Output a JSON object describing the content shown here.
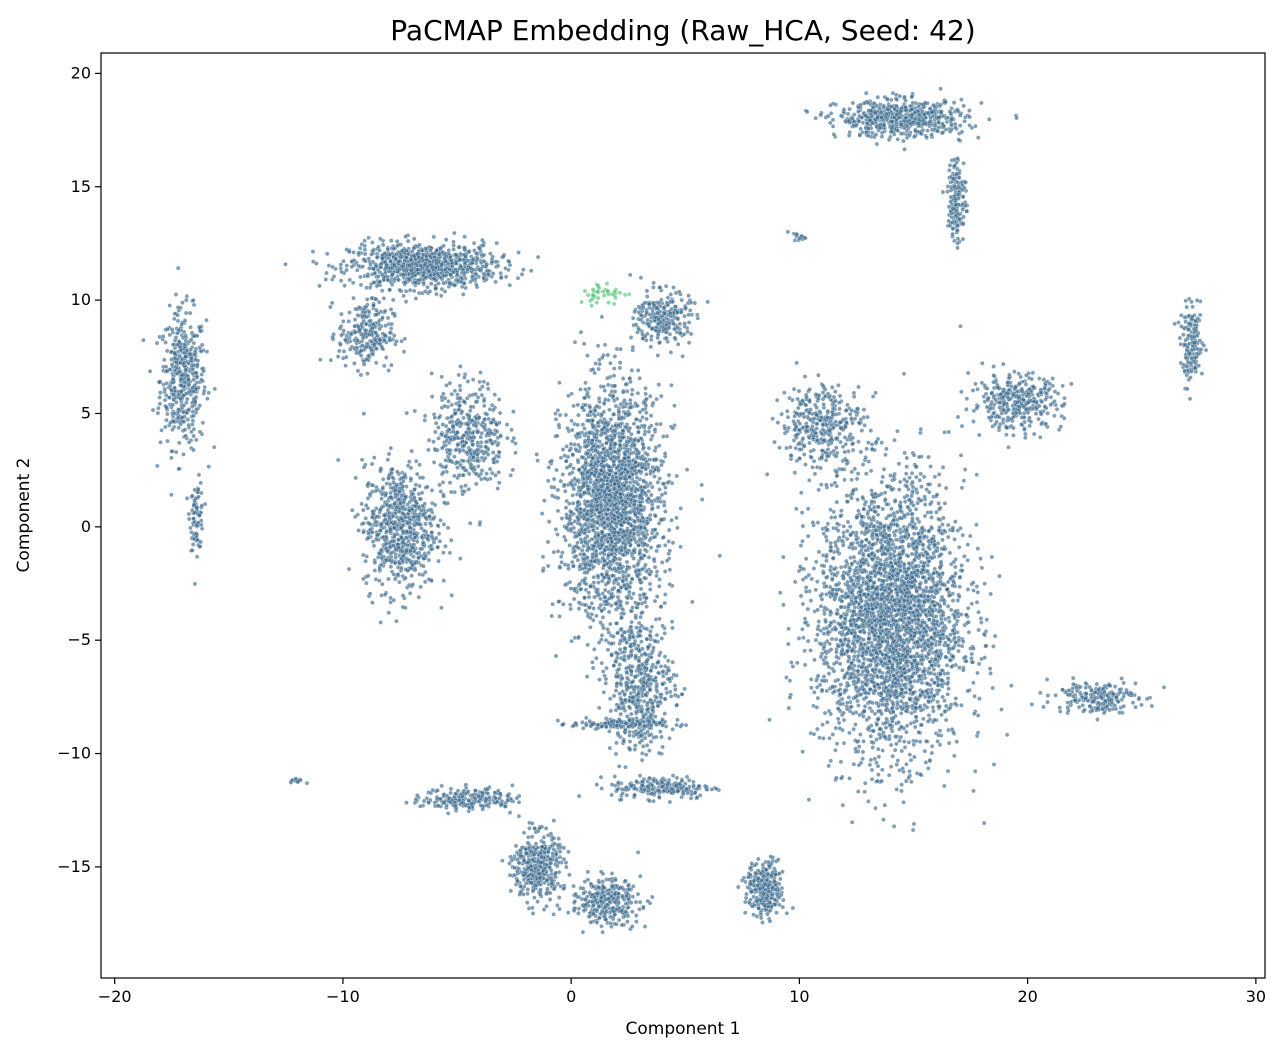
{
  "chart_data": {
    "type": "scatter",
    "title": "PaCMAP Embedding (Raw_HCA, Seed: 42)",
    "xlabel": "Component 1",
    "ylabel": "Component 2",
    "xlim": [
      -20.6,
      30.4
    ],
    "ylim": [
      -19.9,
      20.9
    ],
    "xticks": [
      -20,
      -10,
      0,
      10,
      20,
      30
    ],
    "yticks": [
      -15,
      -10,
      -5,
      0,
      5,
      10,
      15,
      20
    ],
    "xtick_labels": [
      "−20",
      "−10",
      "0",
      "10",
      "20",
      "30"
    ],
    "ytick_labels": [
      "−15",
      "−10",
      "−5",
      "0",
      "5",
      "10",
      "15",
      "20"
    ],
    "grid": false,
    "legend": "none",
    "colors": {
      "main_points": "#3b6a8e",
      "highlight_points": "#4ec477",
      "point_edge": "#ffffff"
    },
    "series": [
      {
        "color": "#3b6a8e",
        "clusters": [
          {
            "center": [
              -17.0,
              6.5
            ],
            "spread": [
              1.0,
              3.0
            ],
            "n": 450
          },
          {
            "center": [
              -16.4,
              0.5
            ],
            "spread": [
              0.3,
              1.5
            ],
            "n": 80
          },
          {
            "center": [
              -6.5,
              11.5
            ],
            "spread": [
              3.2,
              1.0
            ],
            "n": 900
          },
          {
            "center": [
              -9.0,
              8.5
            ],
            "spread": [
              1.2,
              1.5
            ],
            "n": 250
          },
          {
            "center": [
              -7.5,
              0.0
            ],
            "spread": [
              1.6,
              2.8
            ],
            "n": 700
          },
          {
            "center": [
              -4.5,
              4.0
            ],
            "spread": [
              1.6,
              2.5
            ],
            "n": 400
          },
          {
            "center": [
              1.8,
              1.0
            ],
            "spread": [
              2.2,
              5.0
            ],
            "n": 2200
          },
          {
            "center": [
              3.0,
              -7.0
            ],
            "spread": [
              1.5,
              3.0
            ],
            "n": 500
          },
          {
            "center": [
              4.0,
              9.2
            ],
            "spread": [
              1.2,
              1.2
            ],
            "n": 250
          },
          {
            "center": [
              14.0,
              -4.0
            ],
            "spread": [
              3.2,
              6.0
            ],
            "n": 3200
          },
          {
            "center": [
              11.0,
              4.5
            ],
            "spread": [
              1.8,
              1.8
            ],
            "n": 350
          },
          {
            "center": [
              19.5,
              5.5
            ],
            "spread": [
              2.0,
              1.2
            ],
            "n": 350
          },
          {
            "center": [
              14.5,
              18.0
            ],
            "spread": [
              2.8,
              0.8
            ],
            "n": 600
          },
          {
            "center": [
              16.9,
              14.5
            ],
            "spread": [
              0.4,
              2.0
            ],
            "n": 150
          },
          {
            "center": [
              27.2,
              8.0
            ],
            "spread": [
              0.5,
              1.6
            ],
            "n": 150
          },
          {
            "center": [
              23.0,
              -7.5
            ],
            "spread": [
              1.8,
              0.7
            ],
            "n": 200
          },
          {
            "center": [
              -1.5,
              -15.0
            ],
            "spread": [
              1.0,
              1.5
            ],
            "n": 400
          },
          {
            "center": [
              1.5,
              -16.5
            ],
            "spread": [
              1.5,
              1.0
            ],
            "n": 300
          },
          {
            "center": [
              -4.5,
              -12.0
            ],
            "spread": [
              2.0,
              0.5
            ],
            "n": 200
          },
          {
            "center": [
              8.5,
              -16.0
            ],
            "spread": [
              0.8,
              1.2
            ],
            "n": 300
          },
          {
            "center": [
              2.0,
              -8.7
            ],
            "spread": [
              2.0,
              0.2
            ],
            "n": 120
          },
          {
            "center": [
              4.0,
              -11.5
            ],
            "spread": [
              2.2,
              0.5
            ],
            "n": 200
          },
          {
            "center": [
              -12.0,
              -11.2
            ],
            "spread": [
              0.3,
              0.1
            ],
            "n": 15
          },
          {
            "center": [
              10.0,
              12.8
            ],
            "spread": [
              0.3,
              0.2
            ],
            "n": 15
          }
        ]
      },
      {
        "color": "#4ec477",
        "clusters": [
          {
            "center": [
              1.5,
              10.3
            ],
            "spread": [
              1.2,
              0.5
            ],
            "n": 40
          }
        ]
      }
    ]
  }
}
